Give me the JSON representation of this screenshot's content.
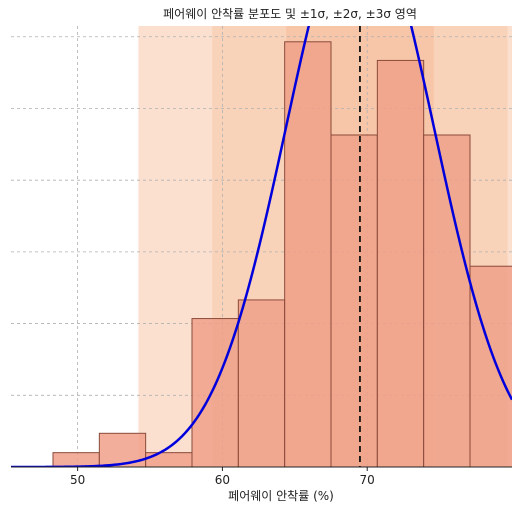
{
  "chart_data": {
    "type": "bar",
    "title": "페어웨이 안착률 분포도 및 ±1σ, ±2σ, ±3σ 영역",
    "xlabel": "페어웨이 안착률 (%)",
    "ylabel": "",
    "xlim": [
      45.4,
      80.0
    ],
    "ylim": [
      0,
      0.0615
    ],
    "xticks": [
      50,
      60,
      70
    ],
    "grid": true,
    "mean": 69.5,
    "std": 5.1,
    "sigma_bands": [
      {
        "k": 1,
        "color": "#f7c6a8"
      },
      {
        "k": 2,
        "color": "#f9d3b9"
      },
      {
        "k": 3,
        "color": "#fbe0d0"
      }
    ],
    "bin_width": 3.2,
    "bins": [
      {
        "left": 48.3,
        "density": 0.002
      },
      {
        "left": 51.5,
        "density": 0.0047
      },
      {
        "left": 54.7,
        "density": 0.002
      },
      {
        "left": 57.9,
        "density": 0.0207
      },
      {
        "left": 61.1,
        "density": 0.0233
      },
      {
        "left": 64.3,
        "density": 0.0593
      },
      {
        "left": 67.5,
        "density": 0.0463
      },
      {
        "left": 70.7,
        "density": 0.0567
      },
      {
        "left": 73.9,
        "density": 0.0463
      },
      {
        "left": 77.1,
        "density": 0.028
      }
    ],
    "bar_color": "#f0a08a",
    "bar_edge": "#8b4a3a",
    "curve_color": "#0000dd",
    "mean_line_color": "#111111"
  }
}
